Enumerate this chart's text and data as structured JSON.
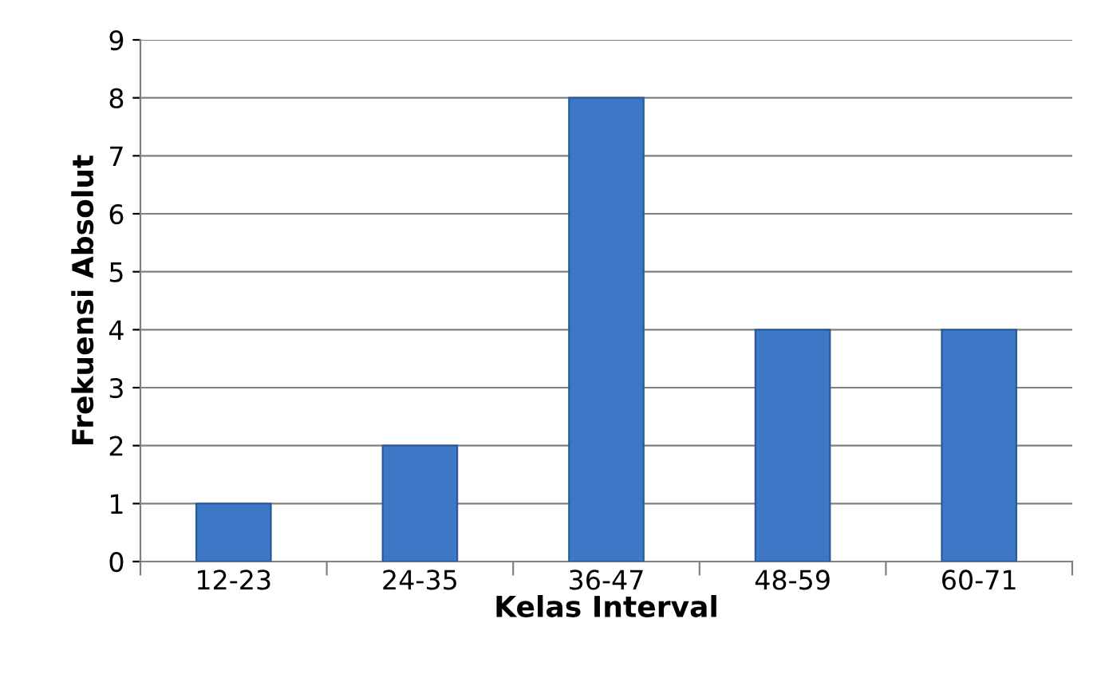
{
  "chart_data": {
    "type": "bar",
    "xlabel": "Kelas Interval",
    "ylabel": "Frekuensi Absolut",
    "categories": [
      "12-23",
      "24-35",
      "36-47",
      "48-59",
      "60-71"
    ],
    "values": [
      1,
      2,
      8,
      4,
      4
    ],
    "color": "#3c78c6",
    "ylim": [
      0,
      9
    ],
    "yticks": [
      0,
      1,
      2,
      3,
      4,
      5,
      6,
      7,
      8,
      9
    ],
    "grid": "y"
  }
}
